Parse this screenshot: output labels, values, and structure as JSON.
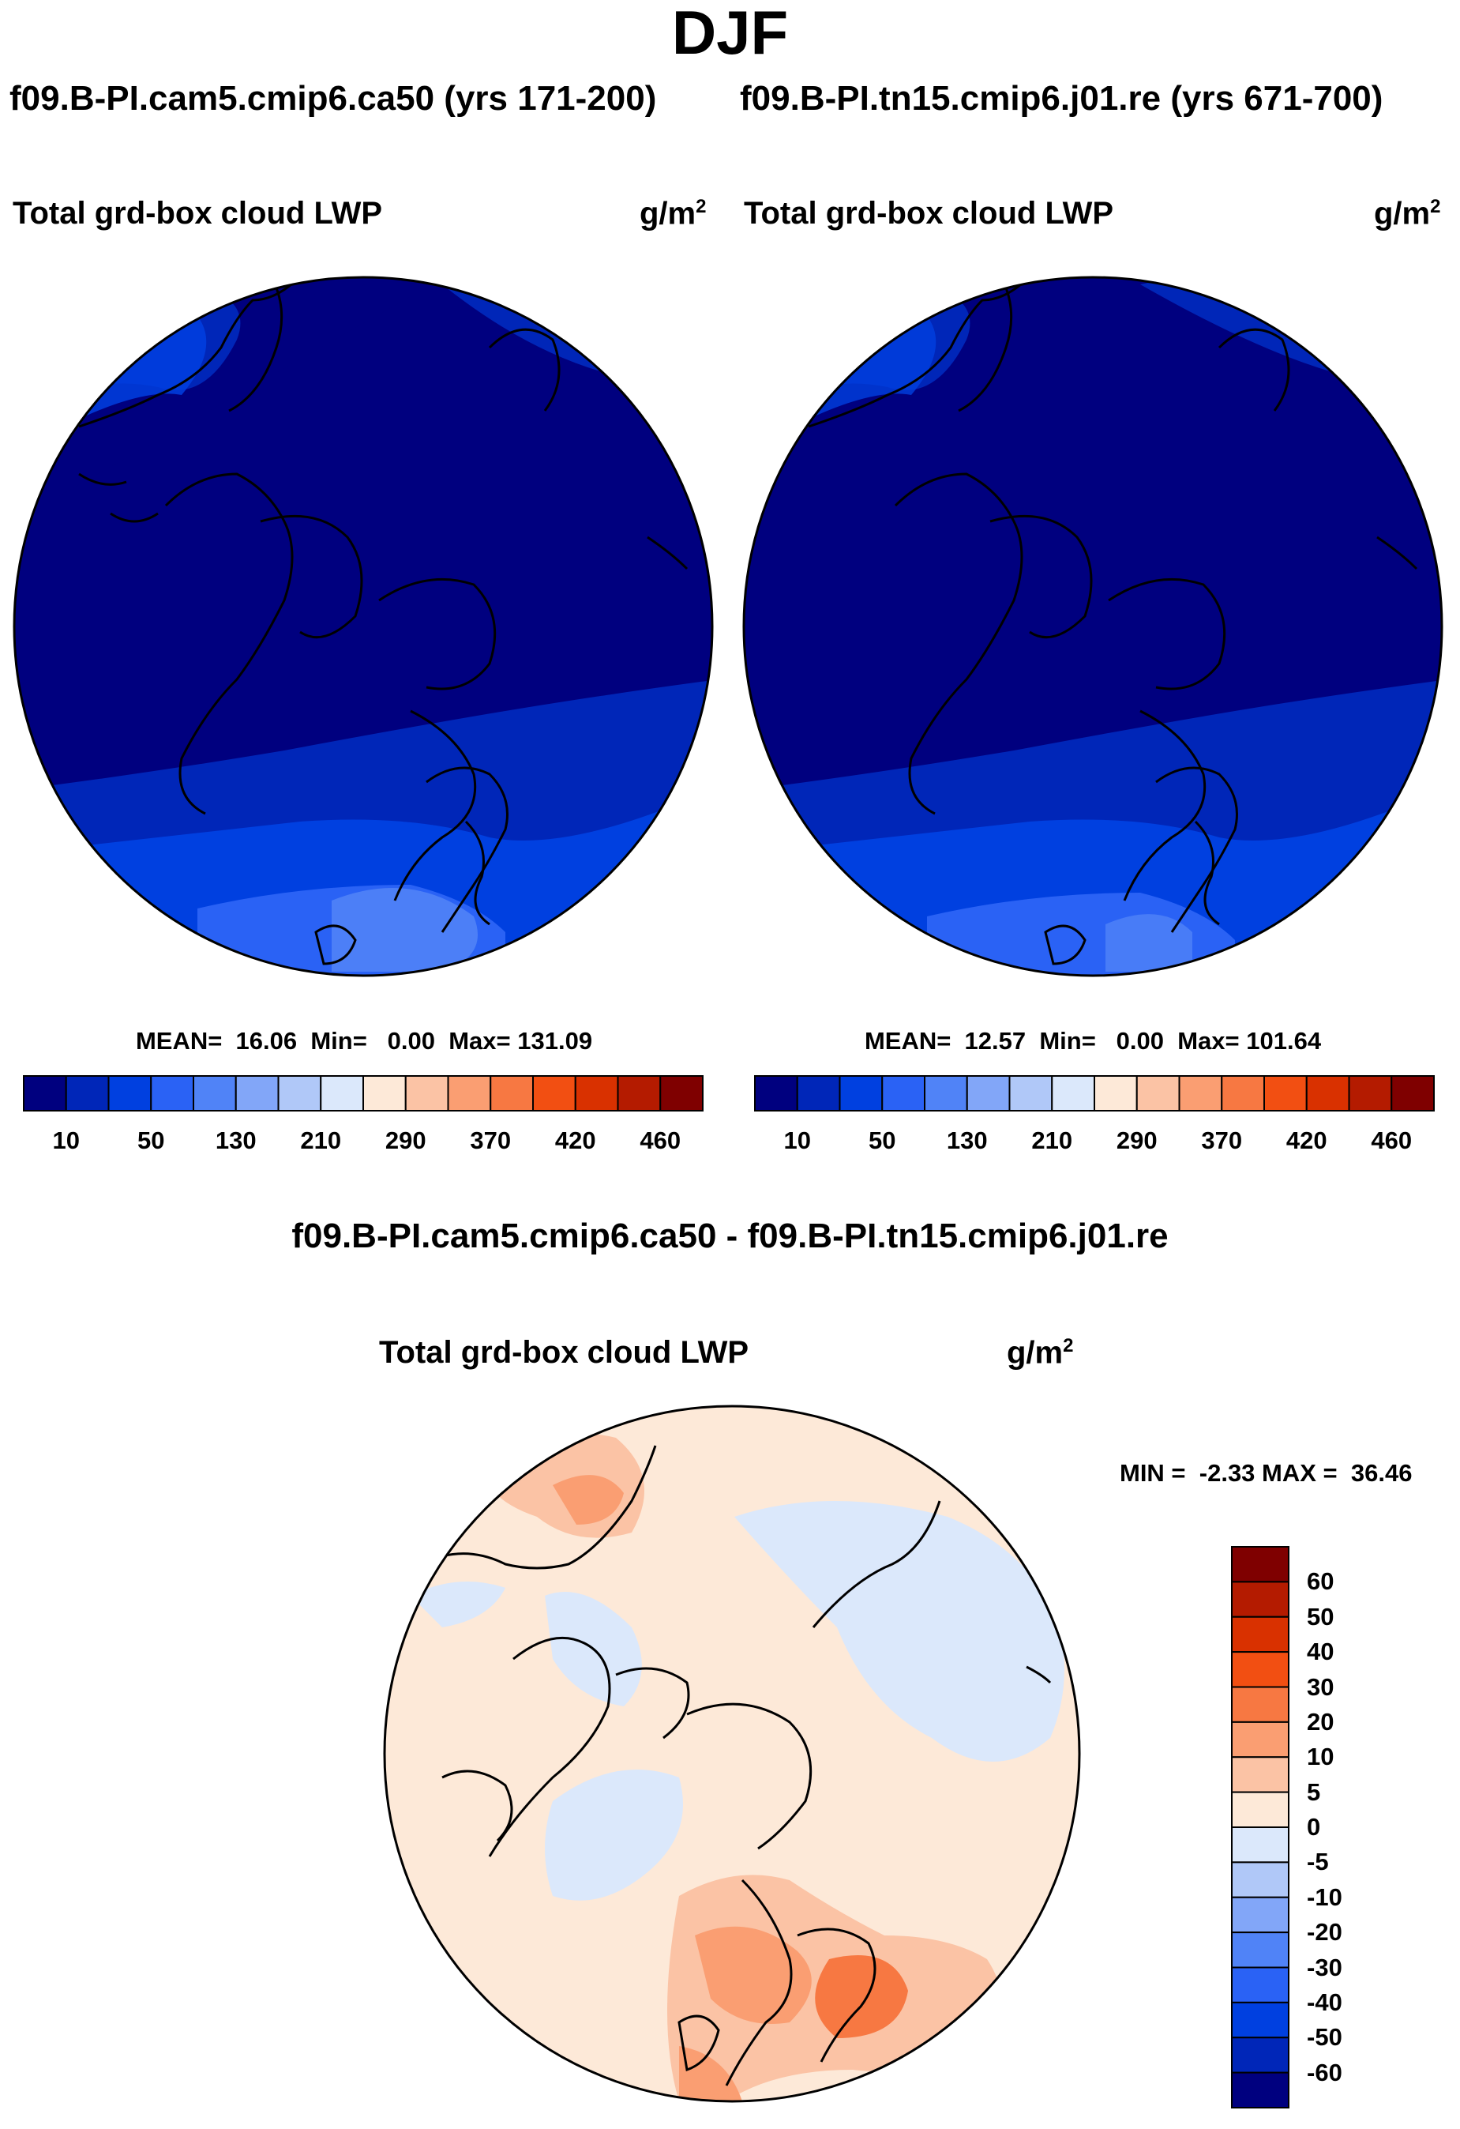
{
  "title": "DJF",
  "left_case": "f09.B-PI.cam5.cmip6.ca50 (yrs 171-200)",
  "right_case": "f09.B-PI.tn15.cmip6.j01.re (yrs 671-700)",
  "panels": [
    {
      "name": "Total grd-box cloud LWP",
      "unit": "g/m",
      "unit_exp": "2",
      "stats": "MEAN=  16.06  Min=   0.00  Max= 131.09"
    },
    {
      "name": "Total grd-box cloud LWP",
      "unit": "g/m",
      "unit_exp": "2",
      "stats": "MEAN=  12.57  Min=   0.00  Max= 101.64"
    }
  ],
  "diff": {
    "title": "f09.B-PI.cam5.cmip6.ca50 - f09.B-PI.tn15.cmip6.j01.re",
    "name": "Total grd-box cloud LWP",
    "unit": "g/m",
    "unit_exp": "2",
    "minmax": "MIN =  -2.33 MAX =  36.46"
  },
  "chart_data": [
    {
      "type": "heatmap",
      "title": "Total grd-box cloud LWP",
      "subtitle": "f09.B-PI.cam5.cmip6.ca50 (yrs 171-200)",
      "units": "g/m2",
      "projection": "north polar stereographic",
      "stats": {
        "mean": 16.06,
        "min": 0.0,
        "max": 131.09
      },
      "colorbar": {
        "orientation": "horizontal",
        "tick_labels": [
          "10",
          "50",
          "130",
          "210",
          "290",
          "370",
          "420",
          "460"
        ],
        "colors": [
          "#00007f",
          "#0026b8",
          "#0040e0",
          "#2a62f5",
          "#5083f7",
          "#82a6f8",
          "#b0c8f8",
          "#dbe8fb",
          "#fde9d8",
          "#fbc3a5",
          "#fa9e72",
          "#f77842",
          "#f24f12",
          "#d93100",
          "#b41b00",
          "#7f0000"
        ]
      }
    },
    {
      "type": "heatmap",
      "title": "Total grd-box cloud LWP",
      "subtitle": "f09.B-PI.tn15.cmip6.j01.re (yrs 671-700)",
      "units": "g/m2",
      "projection": "north polar stereographic",
      "stats": {
        "mean": 12.57,
        "min": 0.0,
        "max": 101.64
      },
      "colorbar": {
        "orientation": "horizontal",
        "tick_labels": [
          "10",
          "50",
          "130",
          "210",
          "290",
          "370",
          "420",
          "460"
        ],
        "colors": [
          "#00007f",
          "#0026b8",
          "#0040e0",
          "#2a62f5",
          "#5083f7",
          "#82a6f8",
          "#b0c8f8",
          "#dbe8fb",
          "#fde9d8",
          "#fbc3a5",
          "#fa9e72",
          "#f77842",
          "#f24f12",
          "#d93100",
          "#b41b00",
          "#7f0000"
        ]
      }
    },
    {
      "type": "heatmap",
      "title": "Total grd-box cloud LWP",
      "subtitle": "f09.B-PI.cam5.cmip6.ca50 - f09.B-PI.tn15.cmip6.j01.re",
      "units": "g/m2",
      "projection": "north polar stereographic",
      "stats": {
        "min": -2.33,
        "max": 36.46
      },
      "colorbar": {
        "orientation": "vertical",
        "tick_labels": [
          "60",
          "50",
          "40",
          "30",
          "20",
          "10",
          "5",
          "0",
          "-5",
          "-10",
          "-20",
          "-30",
          "-40",
          "-50",
          "-60"
        ],
        "colors": [
          "#7f0000",
          "#b41b00",
          "#d93100",
          "#f24f12",
          "#f77842",
          "#fa9e72",
          "#fbc3a5",
          "#fde9d8",
          "#dbe8fb",
          "#b0c8f8",
          "#82a6f8",
          "#5083f7",
          "#2a62f5",
          "#0040e0",
          "#0026b8",
          "#00007f"
        ]
      }
    }
  ]
}
